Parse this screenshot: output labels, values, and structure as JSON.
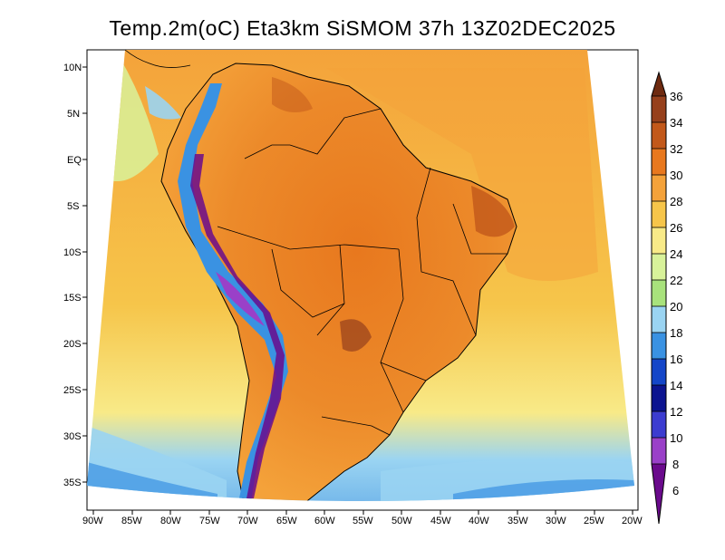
{
  "title": "Temp.2m(oC) Eta3km SiSMOM 37h 13Z02DEC2025",
  "map": {
    "lat_ticks": [
      "10N",
      "5N",
      "EQ",
      "5S",
      "10S",
      "15S",
      "20S",
      "25S",
      "30S",
      "35S"
    ],
    "lon_ticks": [
      "90W",
      "85W",
      "80W",
      "75W",
      "70W",
      "65W",
      "60W",
      "55W",
      "50W",
      "45W",
      "40W",
      "35W",
      "30W",
      "25W",
      "20W"
    ]
  },
  "colorbar": {
    "labels": [
      "36",
      "34",
      "32",
      "30",
      "28",
      "26",
      "24",
      "22",
      "20",
      "18",
      "16",
      "14",
      "12",
      "10",
      "8",
      "6"
    ],
    "colors": [
      "#6e2a10",
      "#96401c",
      "#c2581a",
      "#e8781e",
      "#f4a23a",
      "#f6c54a",
      "#f8ea88",
      "#d8f29a",
      "#a8e27c",
      "#9ad4f2",
      "#3a92e2",
      "#1446c8",
      "#0c1490",
      "#3c3cd0",
      "#9a40c8",
      "#6a0a8c"
    ]
  }
}
